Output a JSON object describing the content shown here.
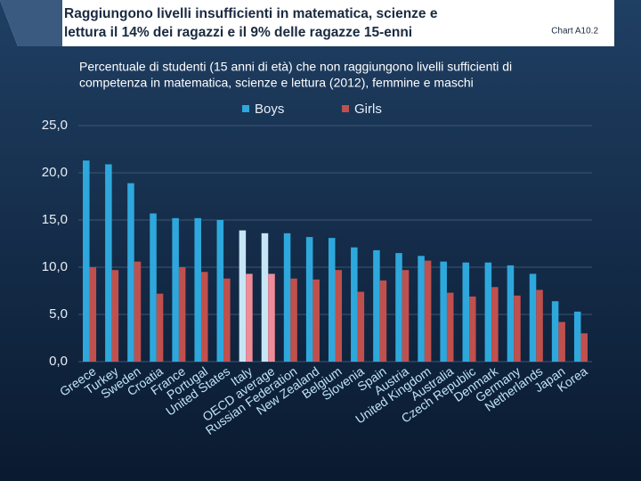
{
  "header": {
    "title_lines": [
      "Raggiungono livelli insufficienti in matematica, scienze e",
      "lettura il 14% dei ragazzi e il 9% delle ragazze 15-enni"
    ],
    "chart_id": "Chart A10.2"
  },
  "chart_data": {
    "type": "bar",
    "subtitle_lines": [
      "Percentuale di studenti (15 anni di età) che non raggiungono livelli sufficienti di",
      "competenza in matematica, scienze e lettura (2012), femmine e maschi"
    ],
    "categories": [
      "Greece",
      "Turkey",
      "Sweden",
      "Croatia",
      "France",
      "Portugal",
      "United States",
      "Italy",
      "OECD average",
      "Russian Federation",
      "New Zealand",
      "Belgium",
      "Slovenia",
      "Spain",
      "Austria",
      "United Kingdom",
      "Australia",
      "Czech Republic",
      "Denmark",
      "Germany",
      "Netherlands",
      "Japan",
      "Korea"
    ],
    "series": [
      {
        "name": "Boys",
        "color": "#2ea8dc",
        "colors": [
          "#2ea8dc",
          "#2ea8dc",
          "#2ea8dc",
          "#2ea8dc",
          "#2ea8dc",
          "#2ea8dc",
          "#2ea8dc",
          "#c6e6f5",
          "#c6e6f5",
          "#2ea8dc",
          "#2ea8dc",
          "#2ea8dc",
          "#2ea8dc",
          "#2ea8dc",
          "#2ea8dc",
          "#2ea8dc",
          "#2ea8dc",
          "#2ea8dc",
          "#2ea8dc",
          "#2ea8dc",
          "#2ea8dc",
          "#2ea8dc",
          "#2ea8dc"
        ],
        "values": [
          21.3,
          20.9,
          18.9,
          15.7,
          15.2,
          15.2,
          15.0,
          13.9,
          13.6,
          13.6,
          13.2,
          13.1,
          12.1,
          11.8,
          11.5,
          11.2,
          10.6,
          10.5,
          10.5,
          10.2,
          9.3,
          6.4,
          5.3
        ]
      },
      {
        "name": "Girls",
        "color": "#c0504d",
        "colors": [
          "#c0504d",
          "#c0504d",
          "#c0504d",
          "#c0504d",
          "#c0504d",
          "#c0504d",
          "#c0504d",
          "#f08c98",
          "#f08c98",
          "#c0504d",
          "#c0504d",
          "#c0504d",
          "#c0504d",
          "#c0504d",
          "#c0504d",
          "#c0504d",
          "#c0504d",
          "#c0504d",
          "#c0504d",
          "#c0504d",
          "#c0504d",
          "#c0504d",
          "#c0504d"
        ],
        "values": [
          10.0,
          9.7,
          10.6,
          7.2,
          10.0,
          9.5,
          8.8,
          9.3,
          9.3,
          8.8,
          8.7,
          9.7,
          7.4,
          8.6,
          9.7,
          10.7,
          7.3,
          6.9,
          7.9,
          7.0,
          7.6,
          4.2,
          3.0
        ]
      }
    ],
    "ylim": [
      0,
      25
    ],
    "yticks": [
      {
        "value": 0,
        "label": "0,0"
      },
      {
        "value": 5,
        "label": "5,0"
      },
      {
        "value": 10,
        "label": "10,0"
      },
      {
        "value": 15,
        "label": "15,0"
      },
      {
        "value": 20,
        "label": "20,0"
      },
      {
        "value": 25,
        "label": "25,0"
      }
    ],
    "grid": true
  }
}
